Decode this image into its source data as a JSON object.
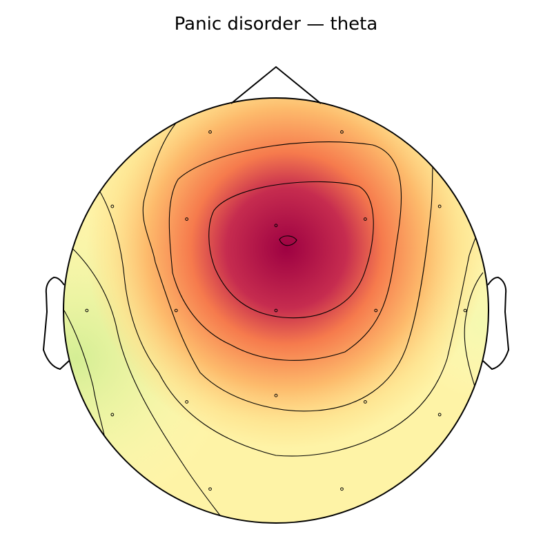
{
  "title": "Panic disorder — theta",
  "chart_data": {
    "type": "heatmap",
    "title": "Panic disorder — theta",
    "colormap": "Spectral_r",
    "map_colors": {
      "low": "#d4ee94",
      "mid_low": "#fdfbba",
      "mid": "#fee08b",
      "mid_high": "#f67b4d",
      "high": "#9e0142"
    },
    "sensors": [
      {
        "x": -0.31,
        "y": 0.84
      },
      {
        "x": 0.31,
        "y": 0.84
      },
      {
        "x": -0.77,
        "y": 0.49
      },
      {
        "x": -0.42,
        "y": 0.43
      },
      {
        "x": 0.0,
        "y": 0.4
      },
      {
        "x": 0.42,
        "y": 0.43
      },
      {
        "x": 0.77,
        "y": 0.49
      },
      {
        "x": -0.89,
        "y": 0.0
      },
      {
        "x": -0.47,
        "y": 0.0
      },
      {
        "x": 0.0,
        "y": 0.0
      },
      {
        "x": 0.47,
        "y": 0.0
      },
      {
        "x": 0.89,
        "y": 0.0
      },
      {
        "x": -0.42,
        "y": -0.43
      },
      {
        "x": 0.0,
        "y": -0.4
      },
      {
        "x": 0.42,
        "y": -0.43
      },
      {
        "x": -0.77,
        "y": -0.49
      },
      {
        "x": 0.77,
        "y": -0.49
      },
      {
        "x": -0.31,
        "y": -0.84
      },
      {
        "x": 0.31,
        "y": -0.84
      }
    ],
    "peak": {
      "x": 0.05,
      "y": 0.3
    },
    "contour_levels": 5
  }
}
